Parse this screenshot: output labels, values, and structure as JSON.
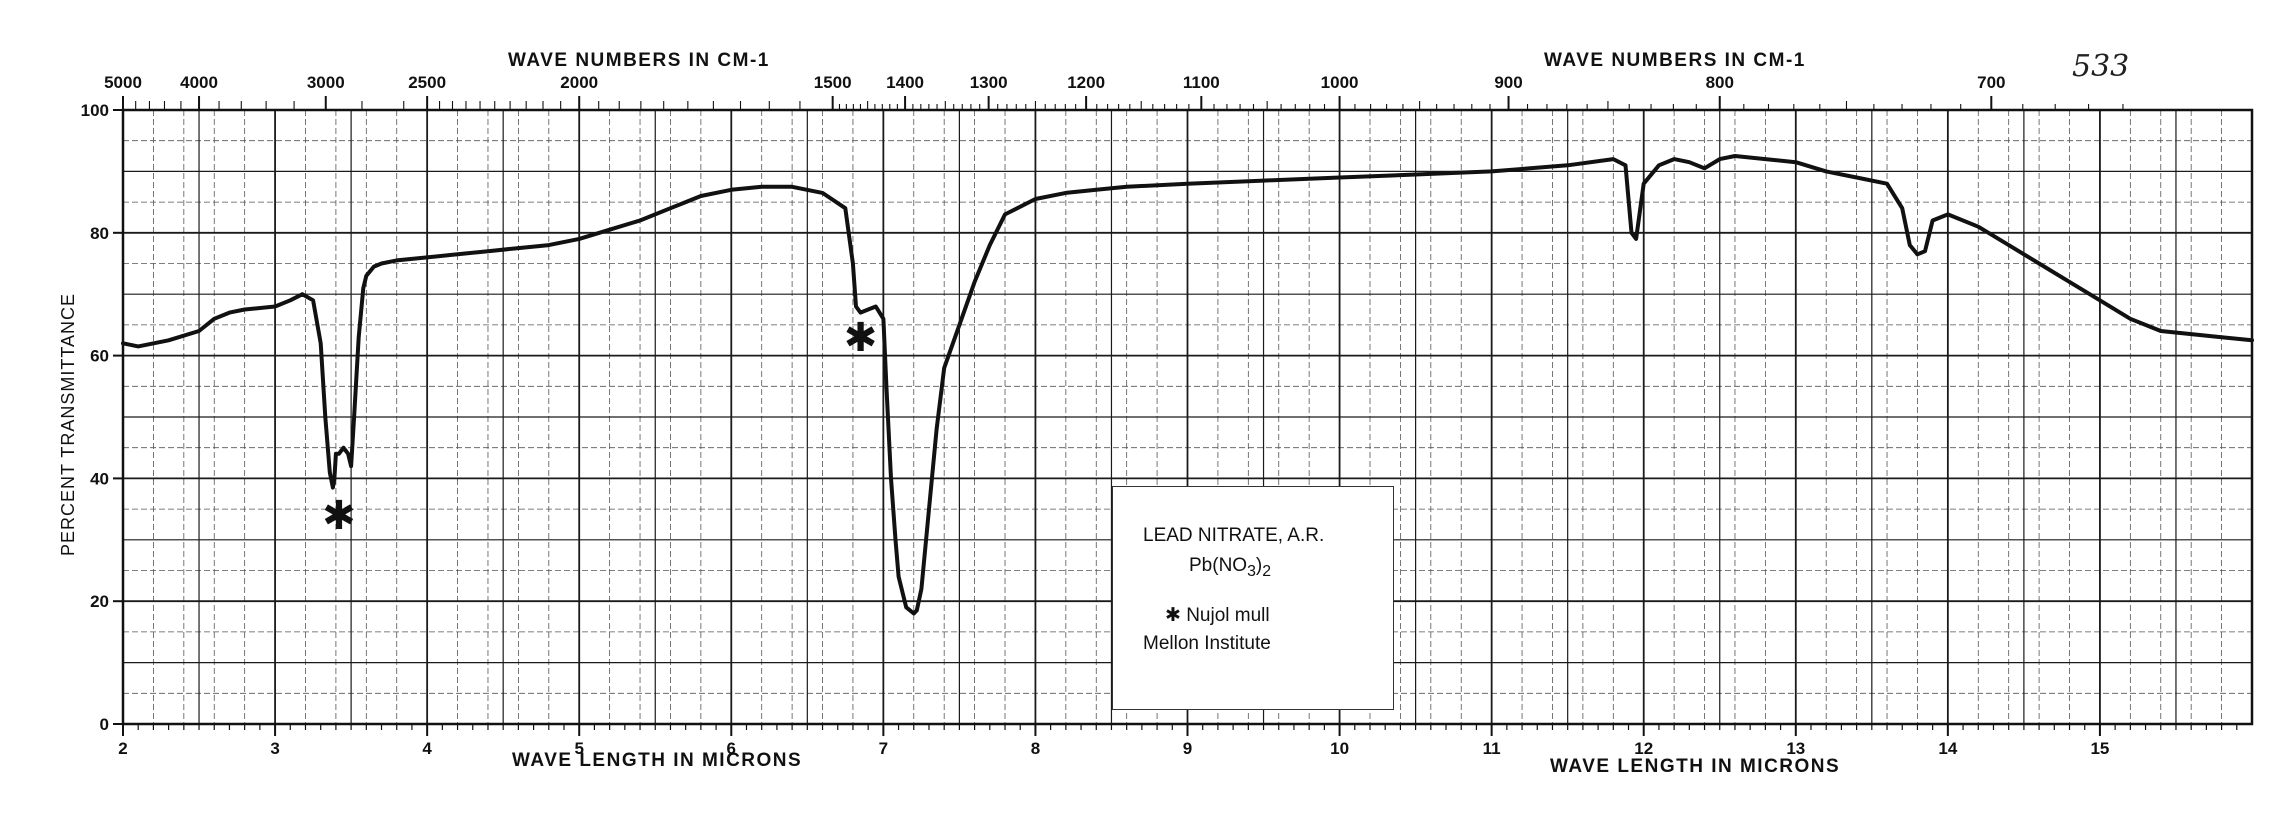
{
  "sheet_number": "533",
  "legend": {
    "compound": "LEAD NITRATE, A.R.",
    "formula": "Pb(NO3)2",
    "formula_parts": {
      "base": "Pb(NO",
      "sub1": "3",
      "close": ")",
      "sub2": "2"
    },
    "note": "✱ Nujol mull",
    "source": "Mellon Institute"
  },
  "colors": {
    "ink": "#111111",
    "grid": "#1a1a1a",
    "paper": "#ffffff"
  },
  "chart_data": {
    "type": "line",
    "title": "",
    "top_axis_title": "WAVE NUMBERS IN CM-1",
    "top_axis_title_right": "WAVE NUMBERS IN CM-1",
    "xlabel": "WAVE LENGTH IN MICRONS",
    "xlabel_right": "WAVE LENGTH IN MICRONS",
    "ylabel": "PERCENT TRANSMITTANCE",
    "xlim": [
      2,
      16
    ],
    "ylim": [
      0,
      100
    ],
    "grid": true,
    "x_ticks": [
      2,
      3,
      4,
      5,
      6,
      7,
      8,
      9,
      10,
      11,
      12,
      13,
      14,
      15
    ],
    "x_tick_labels": [
      "2",
      "3",
      "4",
      "5",
      "6",
      "7",
      "8",
      "9",
      "10",
      "11",
      "12",
      "13",
      "14",
      "15"
    ],
    "y_ticks": [
      0,
      20,
      40,
      60,
      80,
      100
    ],
    "y_tick_labels": [
      "0",
      "20",
      "40",
      "60",
      "80",
      "100"
    ],
    "top_ticks": [
      5000,
      4000,
      3000,
      2500,
      2000,
      1500,
      1400,
      1300,
      1200,
      1100,
      1000,
      900,
      800,
      700
    ],
    "top_tick_labels": [
      "5000",
      "4000",
      "3000",
      "2500",
      "2000",
      "1500",
      "1400",
      "1300",
      "1200",
      "1100",
      "1000",
      "900",
      "800",
      "700"
    ],
    "series": [
      {
        "x": [
          2.0,
          2.1,
          2.3,
          2.5,
          2.6,
          2.7,
          2.8,
          3.0,
          3.1,
          3.18,
          3.25,
          3.3,
          3.33,
          3.36,
          3.38,
          3.39,
          3.4,
          3.42,
          3.45,
          3.48,
          3.5,
          3.52,
          3.55,
          3.58,
          3.6,
          3.65,
          3.7,
          3.8,
          4.0,
          4.2,
          4.4,
          4.6,
          4.8,
          5.0,
          5.2,
          5.4,
          5.6,
          5.7,
          5.8,
          6.0,
          6.2,
          6.4,
          6.6,
          6.75,
          6.8,
          6.82,
          6.85,
          6.9,
          6.95,
          7.0,
          7.02,
          7.05,
          7.08,
          7.1,
          7.15,
          7.2,
          7.22,
          7.25,
          7.3,
          7.35,
          7.4,
          7.5,
          7.6,
          7.7,
          7.8,
          8.0,
          8.2,
          8.4,
          8.6,
          9.0,
          9.5,
          10.0,
          10.5,
          11.0,
          11.5,
          11.8,
          11.88,
          11.92,
          11.95,
          12.0,
          12.1,
          12.2,
          12.3,
          12.4,
          12.5,
          12.6,
          12.8,
          13.0,
          13.2,
          13.4,
          13.6,
          13.7,
          13.75,
          13.8,
          13.85,
          13.9,
          14.0,
          14.2,
          14.4,
          14.6,
          14.8,
          15.0,
          15.2,
          15.4,
          15.6,
          15.8,
          16.0
        ],
        "y": [
          62,
          61.5,
          62.5,
          64,
          66,
          67,
          67.5,
          68,
          69,
          70,
          69,
          62,
          50,
          41,
          38.5,
          40,
          44,
          44,
          45,
          44,
          42,
          50,
          63,
          71,
          73,
          74.5,
          75,
          75.5,
          76,
          76.5,
          77,
          77.5,
          78,
          79,
          80.5,
          82,
          84,
          85,
          86,
          87,
          87.5,
          87.5,
          86.5,
          84,
          75,
          68,
          67,
          67.5,
          68,
          66,
          55,
          40,
          30,
          24,
          19,
          18,
          18.5,
          22,
          35,
          48,
          58,
          65,
          72,
          78,
          83,
          85.5,
          86.5,
          87,
          87.5,
          88,
          88.5,
          89,
          89.5,
          90,
          91,
          92,
          91,
          80,
          79,
          88,
          91,
          92,
          91.5,
          90.5,
          92,
          92.5,
          92,
          91.5,
          90,
          89,
          88,
          84,
          78,
          76.5,
          77,
          82,
          83,
          81,
          78,
          75,
          72,
          69,
          66,
          64,
          63.5,
          63,
          62.5
        ]
      }
    ],
    "annotations": [
      {
        "text": "✱",
        "x": 3.42,
        "y": 34
      },
      {
        "text": "✱",
        "x": 6.85,
        "y": 63
      }
    ]
  }
}
